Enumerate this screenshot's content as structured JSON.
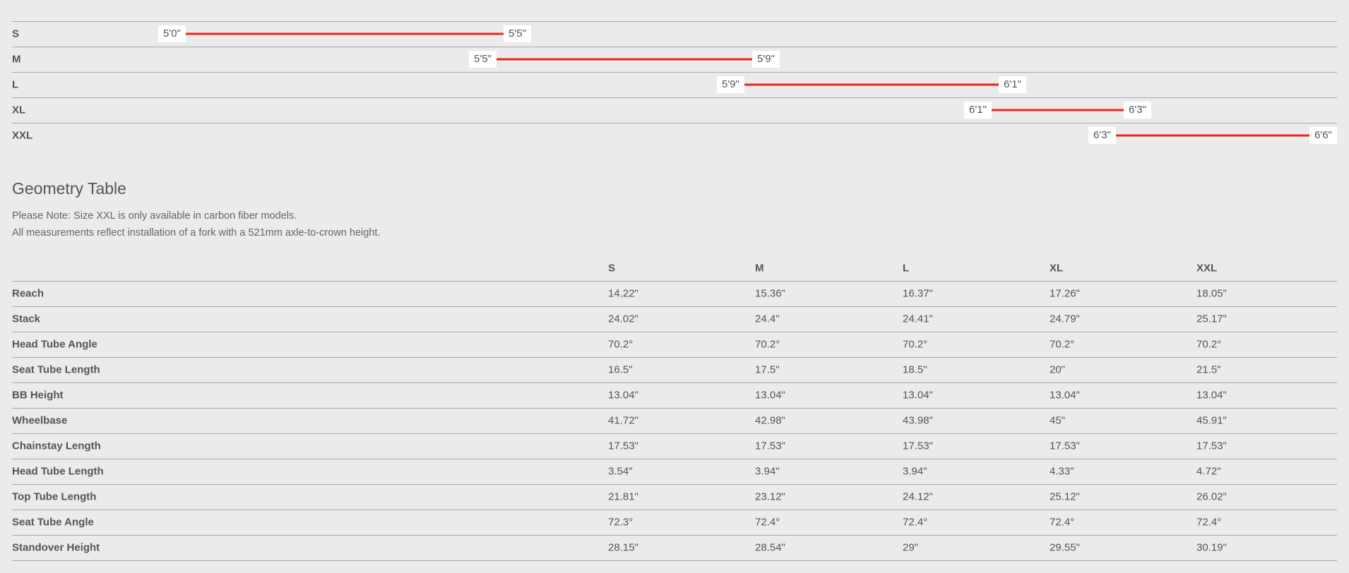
{
  "size_chart": {
    "rows": [
      {
        "size": "S",
        "min": "5'0\"",
        "max": "5'5\""
      },
      {
        "size": "M",
        "min": "5'5\"",
        "max": "5'9\""
      },
      {
        "size": "L",
        "min": "5'9\"",
        "max": "6'1\""
      },
      {
        "size": "XL",
        "min": "6'1\"",
        "max": "6'3\""
      },
      {
        "size": "XXL",
        "min": "6'3\"",
        "max": "6'6\""
      }
    ]
  },
  "geometry": {
    "title": "Geometry Table",
    "notes": [
      "Please Note: Size XXL is only available in carbon fiber models.",
      "All measurements reflect installation of a fork with a 521mm axle-to-crown height."
    ],
    "columns": [
      "S",
      "M",
      "L",
      "XL",
      "XXL"
    ],
    "rows": [
      {
        "label": "Reach",
        "values": [
          "14.22\"",
          "15.36\"",
          "16.37\"",
          "17.26\"",
          "18.05\""
        ]
      },
      {
        "label": "Stack",
        "values": [
          "24.02\"",
          "24.4\"",
          "24.41\"",
          "24.79\"",
          "25.17\""
        ]
      },
      {
        "label": "Head Tube Angle",
        "values": [
          "70.2°",
          "70.2°",
          "70.2°",
          "70.2°",
          "70.2°"
        ]
      },
      {
        "label": "Seat Tube Length",
        "values": [
          "16.5\"",
          "17.5\"",
          "18.5\"",
          "20\"",
          "21.5\""
        ]
      },
      {
        "label": "BB Height",
        "values": [
          "13.04\"",
          "13.04\"",
          "13.04\"",
          "13.04\"",
          "13.04\""
        ]
      },
      {
        "label": "Wheelbase",
        "values": [
          "41.72\"",
          "42.98\"",
          "43.98\"",
          "45\"",
          "45.91\""
        ]
      },
      {
        "label": "Chainstay Length",
        "values": [
          "17.53\"",
          "17.53\"",
          "17.53\"",
          "17.53\"",
          "17.53\""
        ]
      },
      {
        "label": "Head Tube Length",
        "values": [
          "3.54\"",
          "3.94\"",
          "3.94\"",
          "4.33\"",
          "4.72\""
        ]
      },
      {
        "label": "Top Tube Length",
        "values": [
          "21.81\"",
          "23.12\"",
          "24.12\"",
          "25.12\"",
          "26.02\""
        ]
      },
      {
        "label": "Seat Tube Angle",
        "values": [
          "72.3°",
          "72.4°",
          "72.4°",
          "72.4°",
          "72.4°"
        ]
      },
      {
        "label": "Standover Height",
        "values": [
          "28.15\"",
          "28.54\"",
          "29\"",
          "29.55\"",
          "30.19\""
        ]
      }
    ]
  }
}
